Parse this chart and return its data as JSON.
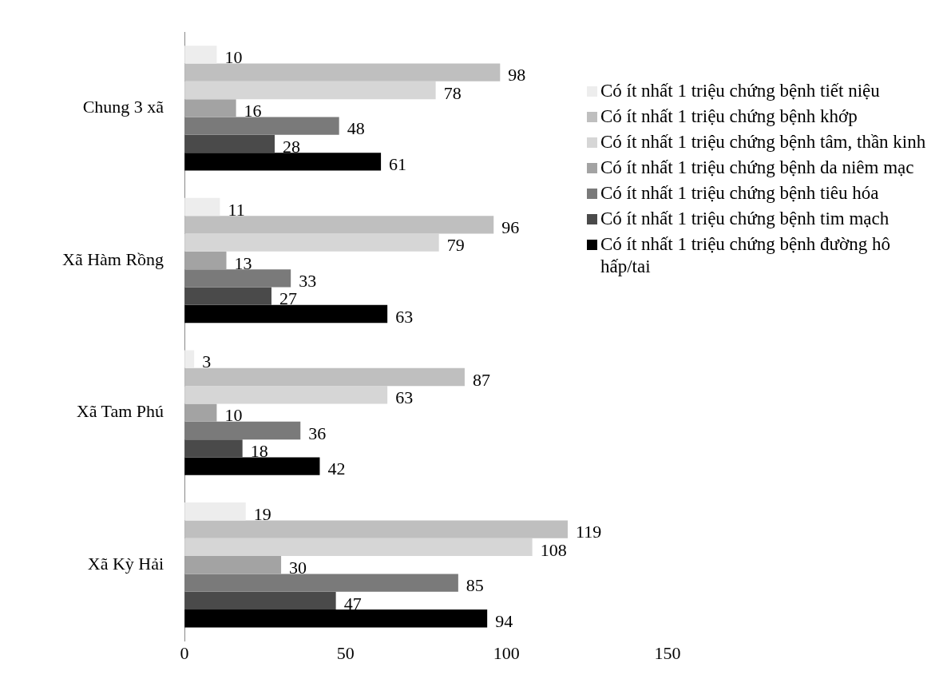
{
  "chart_data": {
    "type": "bar",
    "orientation": "horizontal",
    "categories": [
      "Chung 3 xã",
      "Xã Hàm Rồng",
      "Xã Tam Phú",
      "Xã Kỳ Hải"
    ],
    "series": [
      {
        "name": "Có ít nhất 1 triệu chứng bệnh tiết niệu",
        "color": "#ededed",
        "values": [
          10,
          11,
          3,
          19
        ]
      },
      {
        "name": "Có ít nhất 1 triệu chứng bệnh khớp",
        "color": "#bfbfbf",
        "values": [
          98,
          96,
          87,
          119
        ]
      },
      {
        "name": "Có ít nhất 1 triệu chứng bệnh tâm, thần kinh",
        "color": "#d6d6d6",
        "values": [
          78,
          79,
          63,
          108
        ]
      },
      {
        "name": "Có ít nhất 1 triệu chứng bệnh da niêm mạc",
        "color": "#a3a3a3",
        "values": [
          16,
          13,
          10,
          30
        ]
      },
      {
        "name": "Có ít nhất 1 triệu chứng bệnh tiêu hóa",
        "color": "#7a7a7a",
        "values": [
          48,
          33,
          36,
          85
        ]
      },
      {
        "name": "Có ít nhất 1 triệu chứng bệnh tim mạch",
        "color": "#4a4a4a",
        "values": [
          28,
          27,
          18,
          47
        ]
      },
      {
        "name": "Có ít nhất 1 triệu chứng bệnh đường hô hấp/tai",
        "color": "#000000",
        "values": [
          61,
          63,
          42,
          94
        ]
      }
    ],
    "xlim": [
      0,
      150
    ],
    "xticks": [
      0,
      50,
      100,
      150
    ],
    "grid": false,
    "legend": "right",
    "data_labels": true
  }
}
